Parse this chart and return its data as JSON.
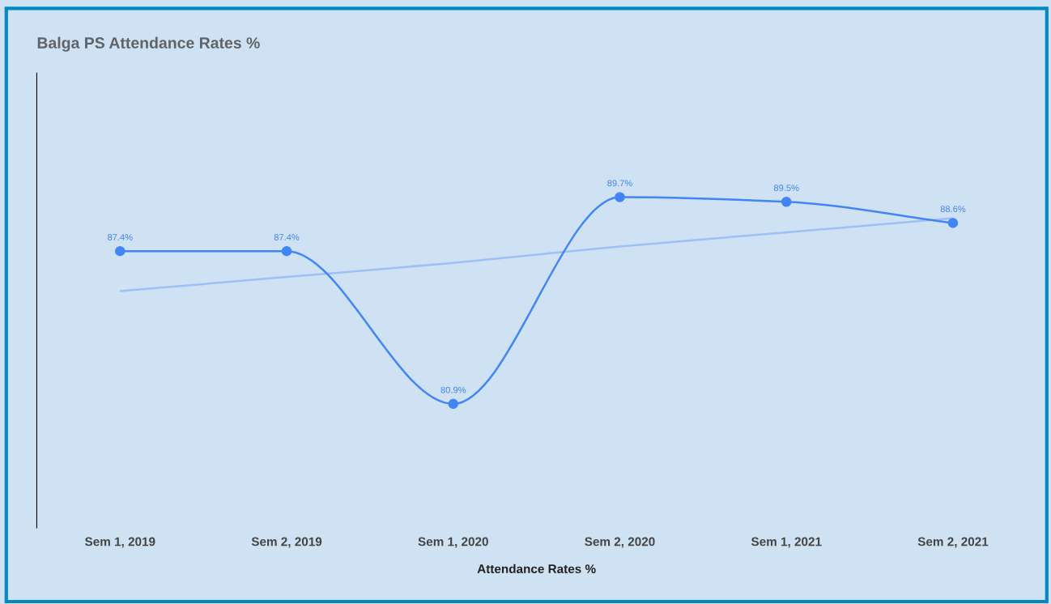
{
  "chart_data": {
    "type": "line",
    "title": "Balga PS Attendance Rates %",
    "xlabel": "Attendance Rates %",
    "categories": [
      "Sem 1, 2019",
      "Sem 2, 2019",
      "Sem 1, 2020",
      "Sem 2, 2020",
      "Sem 1, 2021",
      "Sem 2, 2021"
    ],
    "series": [
      {
        "color": "#4285f4",
        "values": [
          87.4,
          87.4,
          80.9,
          89.7,
          89.5,
          88.6
        ],
        "value_labels": [
          "87.4%",
          "87.4%",
          "80.9%",
          "89.7%",
          "89.5%",
          "88.6%"
        ],
        "marker": "circle"
      },
      {
        "type": "line",
        "color": "#9fc0f5",
        "values": [
          85.7,
          86.3,
          86.9,
          87.6,
          88.2,
          88.8
        ],
        "marker": "none"
      }
    ],
    "tick_labels": "x",
    "grid": false
  }
}
